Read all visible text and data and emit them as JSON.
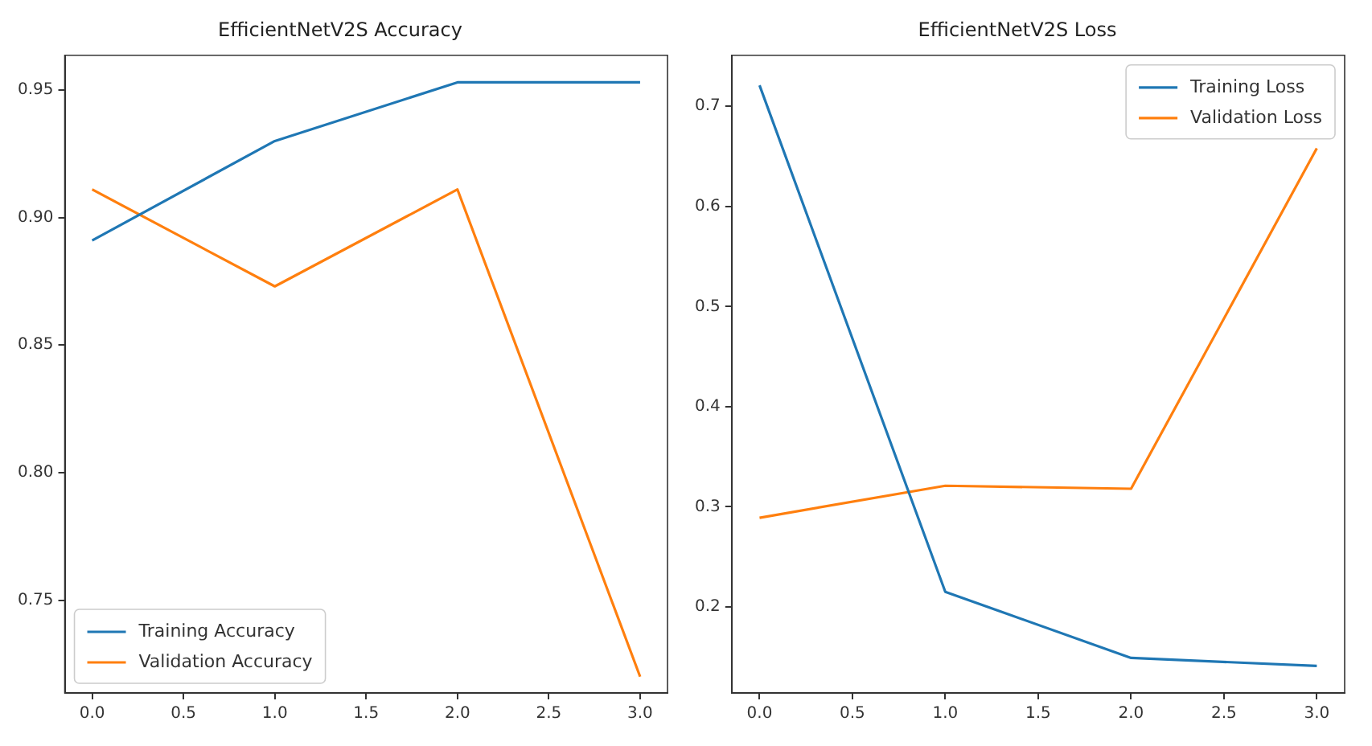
{
  "chart_data": [
    {
      "type": "line",
      "title": "EfficientNetV2S Accuracy",
      "x": [
        0,
        1,
        2,
        3
      ],
      "series": [
        {
          "name": "Training Accuracy",
          "color": "#1f77b4",
          "values": [
            0.891,
            0.93,
            0.953,
            0.953
          ]
        },
        {
          "name": "Validation Accuracy",
          "color": "#ff7f0e",
          "values": [
            0.911,
            0.873,
            0.911,
            0.72
          ]
        }
      ],
      "xlim": [
        -0.15,
        3.15
      ],
      "xticks": [
        {
          "value": 0,
          "label": "0.0"
        },
        {
          "value": 0.5,
          "label": "0.5"
        },
        {
          "value": 1,
          "label": "1.0"
        },
        {
          "value": 1.5,
          "label": "1.5"
        },
        {
          "value": 2,
          "label": "2.0"
        },
        {
          "value": 2.5,
          "label": "2.5"
        },
        {
          "value": 3,
          "label": "3.0"
        }
      ],
      "ylim": [
        0.7136,
        0.9636
      ],
      "yticks": [
        {
          "value": 0.75,
          "label": "0.75"
        },
        {
          "value": 0.8,
          "label": "0.80"
        },
        {
          "value": 0.85,
          "label": "0.85"
        },
        {
          "value": 0.9,
          "label": "0.90"
        },
        {
          "value": 0.95,
          "label": "0.95"
        }
      ],
      "grid": false,
      "legend": "bottom left",
      "marker": "none",
      "line_style": "solid"
    },
    {
      "type": "line",
      "title": "EfficientNetV2S Loss",
      "x": [
        0,
        1,
        2,
        3
      ],
      "series": [
        {
          "name": "Training Loss",
          "color": "#1f77b4",
          "values": [
            0.721,
            0.215,
            0.149,
            0.141
          ]
        },
        {
          "name": "Validation Loss",
          "color": "#ff7f0e",
          "values": [
            0.289,
            0.321,
            0.318,
            0.658
          ]
        }
      ],
      "xlim": [
        -0.15,
        3.15
      ],
      "xticks": [
        {
          "value": 0,
          "label": "0.0"
        },
        {
          "value": 0.5,
          "label": "0.5"
        },
        {
          "value": 1,
          "label": "1.0"
        },
        {
          "value": 1.5,
          "label": "1.5"
        },
        {
          "value": 2,
          "label": "2.0"
        },
        {
          "value": 2.5,
          "label": "2.5"
        },
        {
          "value": 3,
          "label": "3.0"
        }
      ],
      "ylim": [
        0.114,
        0.751
      ],
      "yticks": [
        0.2,
        0.3,
        0.4,
        0.5,
        0.6,
        0.7
      ],
      "grid": false,
      "legend": "top right",
      "marker": "none",
      "line_style": "solid"
    }
  ]
}
